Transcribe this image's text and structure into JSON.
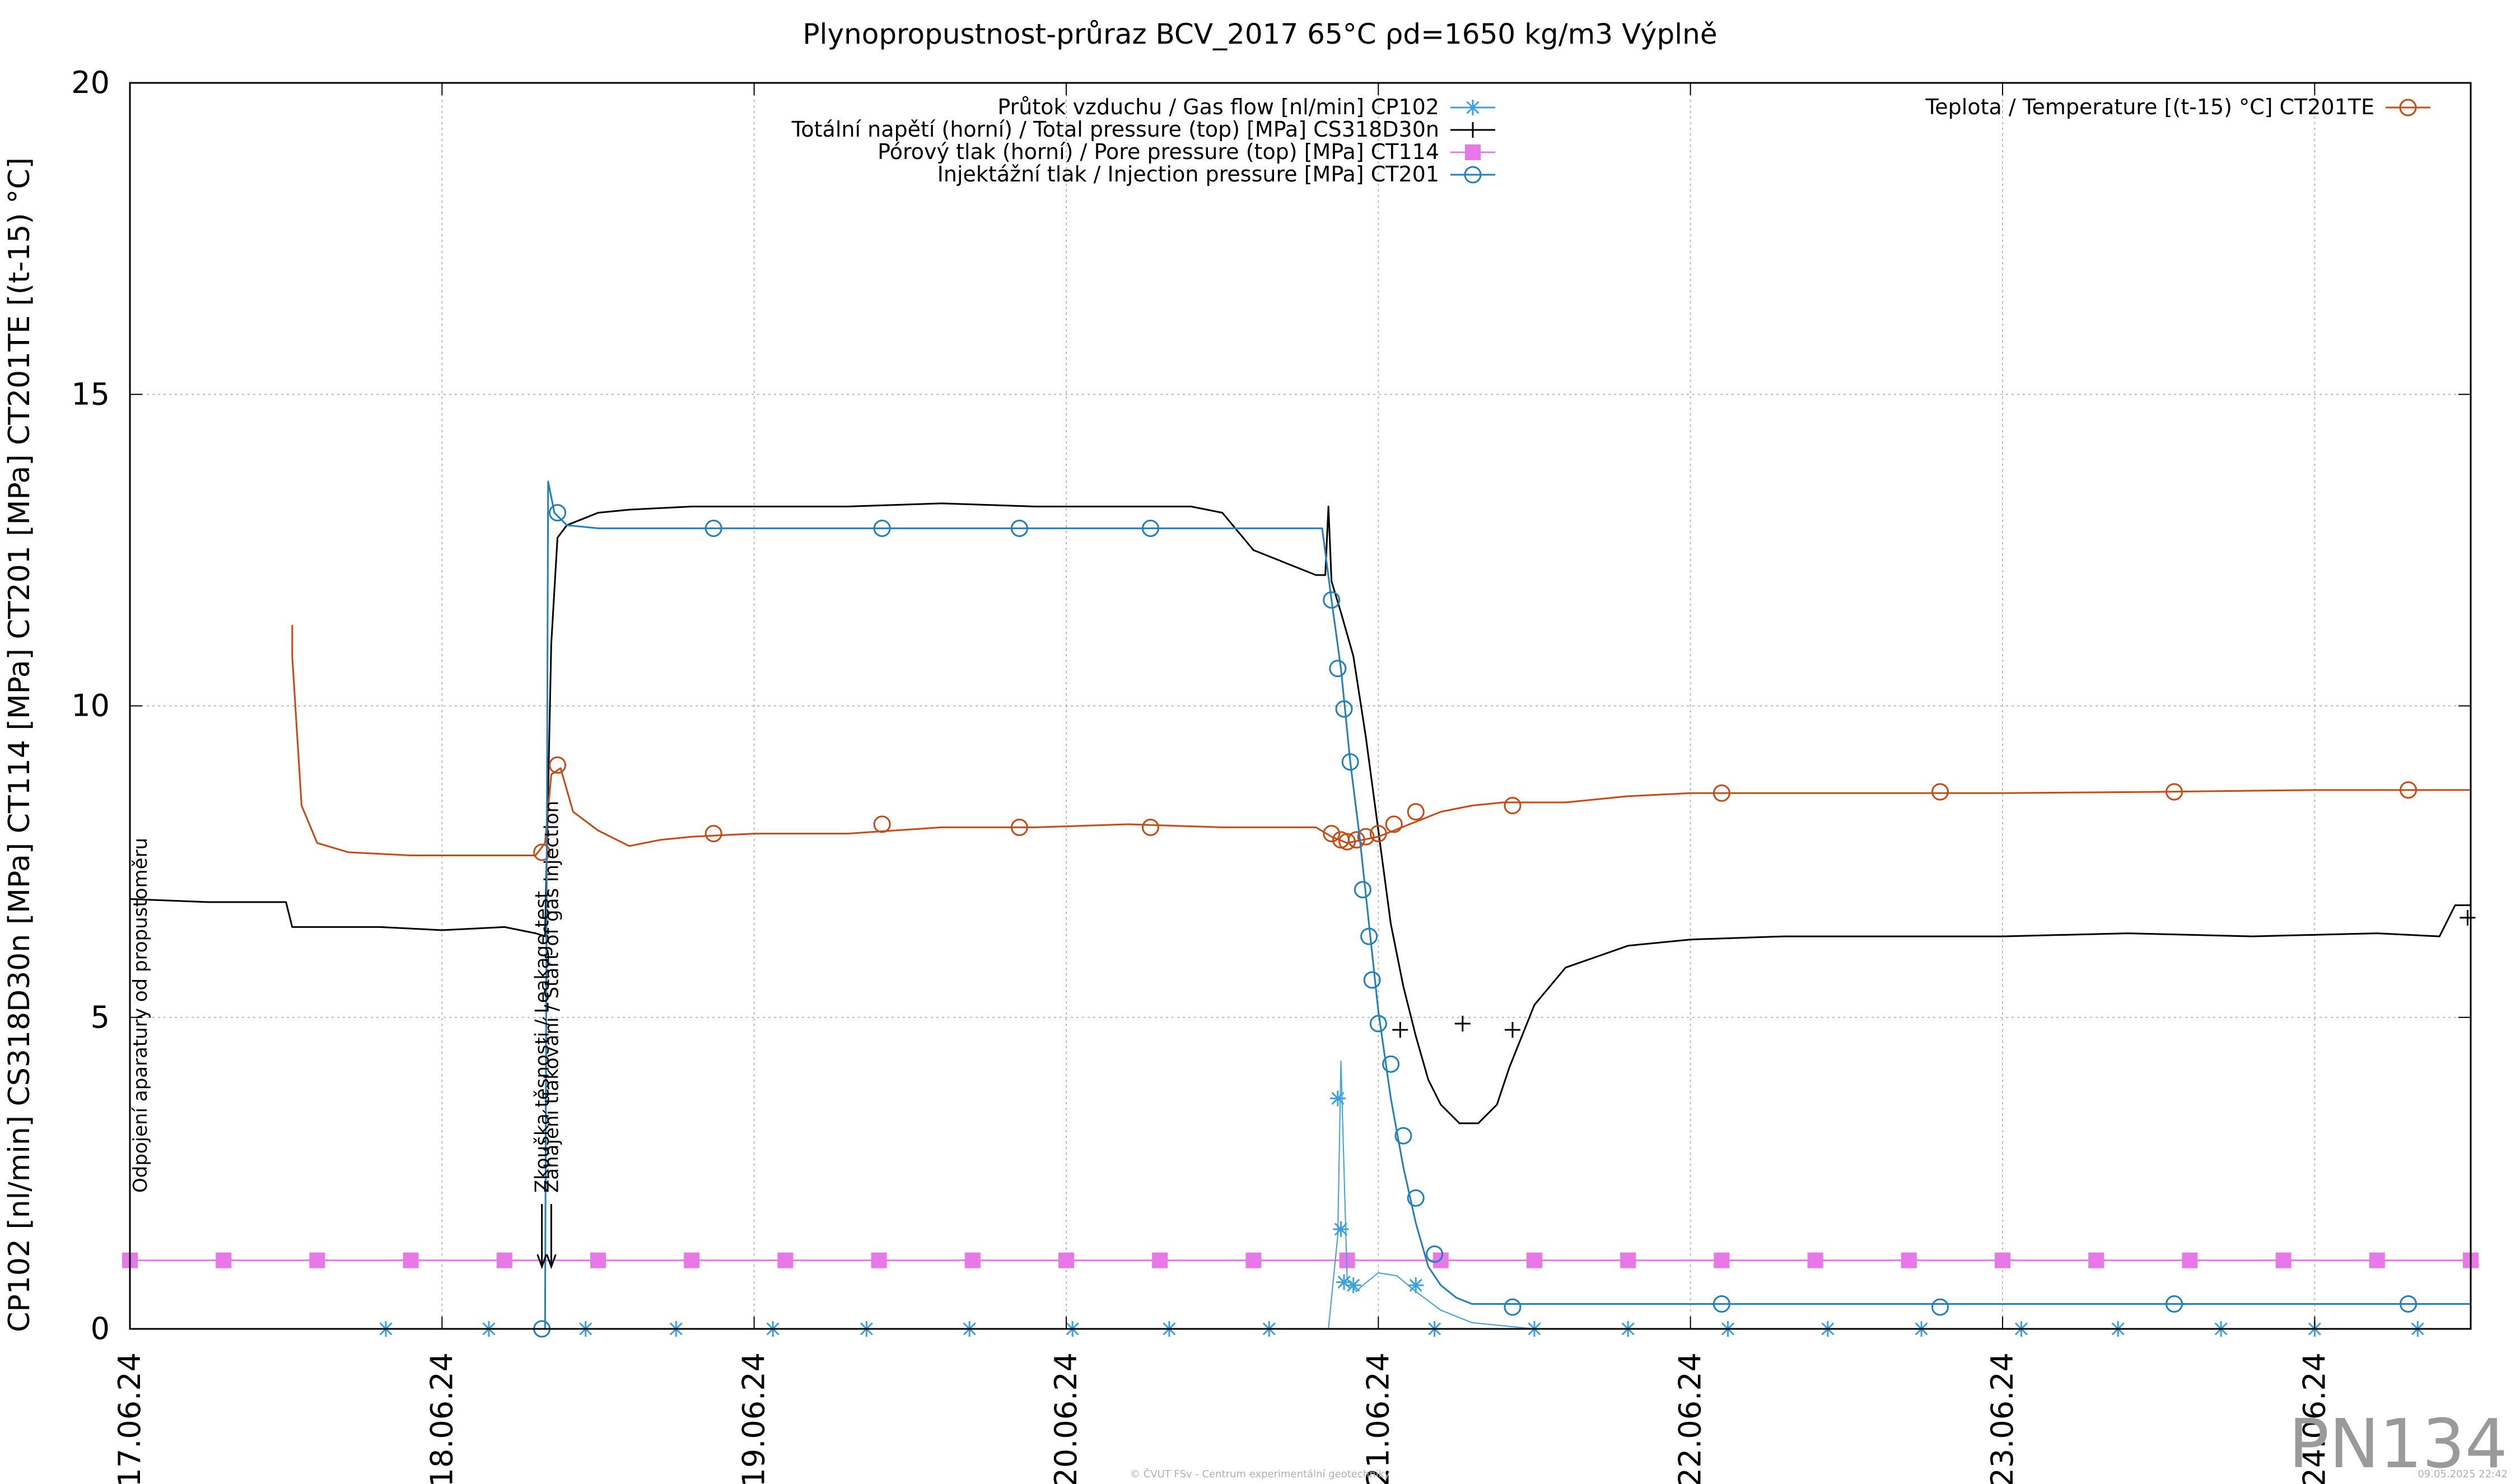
{
  "chart_data": {
    "type": "line",
    "title": "Plynopropustnost-průraz BCV_2017 65°C ρd=1650 kg/m3 Výplně",
    "ylabel": "CP102 [nl/min] CS318D30n [MPa] CT114 [MPa] CT201 [MPa] CT201TE [(t-15) °C]",
    "xlabel": "",
    "x_range_days": [
      0,
      7.5
    ],
    "ylim": [
      0,
      20
    ],
    "y_ticks": [
      "0",
      "5",
      "10",
      "15",
      "20"
    ],
    "x_ticks": [
      "17.06.24",
      "18.06.24",
      "19.06.24",
      "20.06.24",
      "21.06.24",
      "22.06.24",
      "23.06.24",
      "24.06.24"
    ],
    "grid": true,
    "legend": [
      "Průtok vzduchu / Gas flow [nl/min] CP102",
      "Totální napětí (horní) / Total pressure (top) [MPa] CS318D30n",
      "Pórový tlak (horní) / Pore pressure (top) [MPa] CT114",
      "Injektážní tlak / Injection pressure [MPa] CT201"
    ],
    "legend2": [
      "Teplota / Temperature [(t-15) °C] CT201TE"
    ],
    "annotations": [
      "Odpojení aparatury od propustoměru",
      "Zkouška těsnosti / Leakage test",
      "Zahájení tlakování / Start of gas injection"
    ],
    "annotation_x": [
      0,
      1.32,
      1.35
    ],
    "series": [
      {
        "name": "Průtok vzduchu / Gas flow [nl/min] CP102",
        "color": "#3aa0e0",
        "marker": "star",
        "x": [
          0.8,
          1.13,
          1.35,
          1.37,
          1.46,
          1.65,
          1.95,
          2.25,
          2.58,
          2.9,
          3.2,
          3.53,
          3.84,
          3.87,
          3.88,
          3.9,
          3.93,
          3.95,
          4.0,
          4.06,
          4.12,
          4.2,
          4.3,
          4.5,
          4.8,
          5.2,
          5.5,
          6.0,
          6.5,
          7.0,
          7.5
        ],
        "y": [
          0,
          0,
          0,
          0,
          0,
          0,
          0,
          0,
          0,
          0,
          0,
          0,
          0,
          1.5,
          4.3,
          0.8,
          0.6,
          0.7,
          0.9,
          0.85,
          0.6,
          0.3,
          0.1,
          0,
          0,
          0,
          0,
          0,
          0,
          0,
          0
        ],
        "marker_x": [
          0.82,
          1.15,
          1.46,
          1.75,
          2.06,
          2.36,
          2.69,
          3.02,
          3.33,
          3.65,
          3.87,
          3.88,
          3.89,
          3.92,
          4.12,
          4.18,
          4.5,
          4.8,
          5.12,
          5.44,
          5.74,
          6.06,
          6.37,
          6.7,
          7.0,
          7.33
        ],
        "marker_y": [
          0,
          0,
          0,
          0,
          0,
          0,
          0,
          0,
          0,
          0,
          3.7,
          1.6,
          0.75,
          0.7,
          0.7,
          0,
          0,
          0,
          0,
          0,
          0,
          0,
          0,
          0,
          0,
          0
        ]
      },
      {
        "name": "Totální napětí (horní) / Total pressure (top) [MPa] CS318D30n",
        "color": "#000000",
        "marker": "plus",
        "x": [
          0,
          0.25,
          0.5,
          0.52,
          0.8,
          1.0,
          1.2,
          1.3,
          1.33,
          1.35,
          1.37,
          1.4,
          1.45,
          1.5,
          1.6,
          1.8,
          2.0,
          2.3,
          2.6,
          2.9,
          3.2,
          3.4,
          3.5,
          3.6,
          3.7,
          3.8,
          3.83,
          3.84,
          3.85,
          3.88,
          3.92,
          3.96,
          4.0,
          4.04,
          4.08,
          4.12,
          4.16,
          4.2,
          4.26,
          4.32,
          4.38,
          4.42,
          4.5,
          4.6,
          4.8,
          5.0,
          5.3,
          5.6,
          6.0,
          6.4,
          6.8,
          7.2,
          7.4,
          7.45,
          7.5
        ],
        "y": [
          6.9,
          6.85,
          6.85,
          6.45,
          6.45,
          6.4,
          6.45,
          6.35,
          6.3,
          11.0,
          12.7,
          12.9,
          13.0,
          13.1,
          13.15,
          13.2,
          13.2,
          13.2,
          13.25,
          13.2,
          13.2,
          13.2,
          13.1,
          12.5,
          12.3,
          12.1,
          12.1,
          13.2,
          12.0,
          11.5,
          10.8,
          9.5,
          8.0,
          6.5,
          5.5,
          4.7,
          4.0,
          3.6,
          3.3,
          3.3,
          3.6,
          4.2,
          5.2,
          5.8,
          6.15,
          6.25,
          6.3,
          6.3,
          6.3,
          6.35,
          6.3,
          6.35,
          6.3,
          6.8,
          6.8
        ],
        "marker_x": [
          4.07,
          4.27,
          4.43,
          7.49
        ],
        "marker_y": [
          4.8,
          4.9,
          4.8,
          6.6
        ]
      },
      {
        "name": "Pórový tlak (horní) / Pore pressure (top) [MPa] CT114",
        "color": "#e878e8",
        "marker": "square",
        "x": [
          0,
          7.5
        ],
        "y": [
          1.1,
          1.1
        ],
        "marker_x": [
          0,
          0.3,
          0.6,
          0.9,
          1.2,
          1.5,
          1.8,
          2.1,
          2.4,
          2.7,
          3.0,
          3.3,
          3.6,
          3.9,
          4.2,
          4.5,
          4.8,
          5.1,
          5.4,
          5.7,
          6.0,
          6.3,
          6.6,
          6.9,
          7.2,
          7.5
        ],
        "marker_y": [
          1.1,
          1.1,
          1.1,
          1.1,
          1.1,
          1.1,
          1.1,
          1.1,
          1.1,
          1.1,
          1.1,
          1.1,
          1.1,
          1.1,
          1.1,
          1.1,
          1.1,
          1.1,
          1.1,
          1.1,
          1.1,
          1.1,
          1.1,
          1.1,
          1.1,
          1.1
        ]
      },
      {
        "name": "Injektážní tlak / Injection pressure [MPa] CT201",
        "color": "#1f7fbf",
        "marker": "circle",
        "x": [
          1.3,
          1.33,
          1.34,
          1.36,
          1.4,
          1.5,
          1.8,
          2.4,
          3.0,
          3.6,
          3.82,
          3.85,
          3.88,
          3.91,
          3.94,
          3.97,
          4.0,
          4.04,
          4.08,
          4.12,
          4.16,
          4.2,
          4.25,
          4.3,
          4.4,
          4.6,
          5.0,
          5.5,
          6.0,
          6.5,
          7.0,
          7.5
        ],
        "y": [
          0,
          0,
          13.6,
          13.1,
          12.9,
          12.85,
          12.85,
          12.85,
          12.85,
          12.85,
          12.85,
          11.7,
          10.6,
          9.1,
          7.9,
          6.5,
          5.1,
          3.7,
          2.6,
          1.7,
          1.0,
          0.7,
          0.5,
          0.4,
          0.4,
          0.4,
          0.4,
          0.4,
          0.4,
          0.4,
          0.4,
          0.4
        ],
        "marker_x": [
          1.32,
          1.37,
          1.87,
          2.41,
          2.85,
          3.27,
          3.85,
          3.87,
          3.89,
          3.91,
          3.95,
          3.97,
          3.98,
          4.0,
          4.04,
          4.08,
          4.12,
          4.18,
          4.43,
          5.1,
          5.8,
          6.55,
          7.3
        ],
        "marker_y": [
          0,
          13.1,
          12.85,
          12.85,
          12.85,
          12.85,
          11.7,
          10.6,
          9.95,
          9.1,
          7.05,
          6.3,
          5.6,
          4.9,
          4.25,
          3.1,
          2.1,
          1.2,
          0.35,
          0.4,
          0.35,
          0.4,
          0.4
        ]
      },
      {
        "name": "Teplota / Temperature [(t-15) °C] CT201TE",
        "color": "#c84a12",
        "marker": "circle",
        "x": [
          0.52,
          0.52,
          0.55,
          0.6,
          0.7,
          0.9,
          1.1,
          1.3,
          1.33,
          1.35,
          1.38,
          1.42,
          1.5,
          1.6,
          1.7,
          1.8,
          2.0,
          2.3,
          2.6,
          2.9,
          3.2,
          3.5,
          3.8,
          3.85,
          3.9,
          3.95,
          4.0,
          4.05,
          4.1,
          4.2,
          4.3,
          4.4,
          4.6,
          4.8,
          5.0,
          5.5,
          6.0,
          6.5,
          7.0,
          7.3,
          7.5
        ],
        "y": [
          11.3,
          10.8,
          8.4,
          7.8,
          7.65,
          7.6,
          7.6,
          7.6,
          7.8,
          8.9,
          9.0,
          8.3,
          8.0,
          7.75,
          7.85,
          7.9,
          7.95,
          7.95,
          8.05,
          8.05,
          8.1,
          8.05,
          8.05,
          7.9,
          7.8,
          7.85,
          7.9,
          8.0,
          8.1,
          8.3,
          8.4,
          8.45,
          8.45,
          8.55,
          8.6,
          8.6,
          8.6,
          8.62,
          8.65,
          8.65,
          8.65
        ],
        "marker_x": [
          1.32,
          1.37,
          1.87,
          2.41,
          2.85,
          3.27,
          3.85,
          3.88,
          3.9,
          3.93,
          3.96,
          4.0,
          4.05,
          4.12,
          4.43,
          5.1,
          5.8,
          6.55,
          7.3
        ],
        "marker_y": [
          7.65,
          9.05,
          7.95,
          8.1,
          8.05,
          8.05,
          7.95,
          7.85,
          7.82,
          7.85,
          7.9,
          7.95,
          8.1,
          8.3,
          8.4,
          8.6,
          8.62,
          8.62,
          8.65
        ]
      }
    ]
  },
  "watermark": "PN134",
  "footer_center": "© ČVUT FSv - Centrum experimentální geotechniky",
  "footer_right": "09.05.2025 22:42"
}
